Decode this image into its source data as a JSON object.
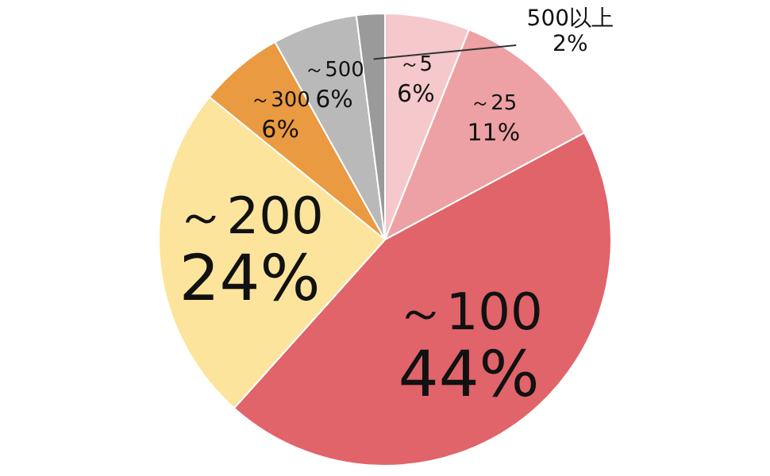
{
  "chart_data": {
    "type": "pie",
    "categories": [
      "～5",
      "～25",
      "～100",
      "～200",
      "～300",
      "～500",
      "500以上"
    ],
    "values": [
      6,
      11,
      44,
      24,
      6,
      6,
      2
    ],
    "value_labels": [
      "6%",
      "11%",
      "44%",
      "24%",
      "6%",
      "6%",
      "2%"
    ],
    "colors": [
      "#f5c8cb",
      "#eda1a4",
      "#e0646a",
      "#fde49c",
      "#ea9a40",
      "#b9b9b9",
      "#9a9a9a"
    ],
    "legend": false
  }
}
